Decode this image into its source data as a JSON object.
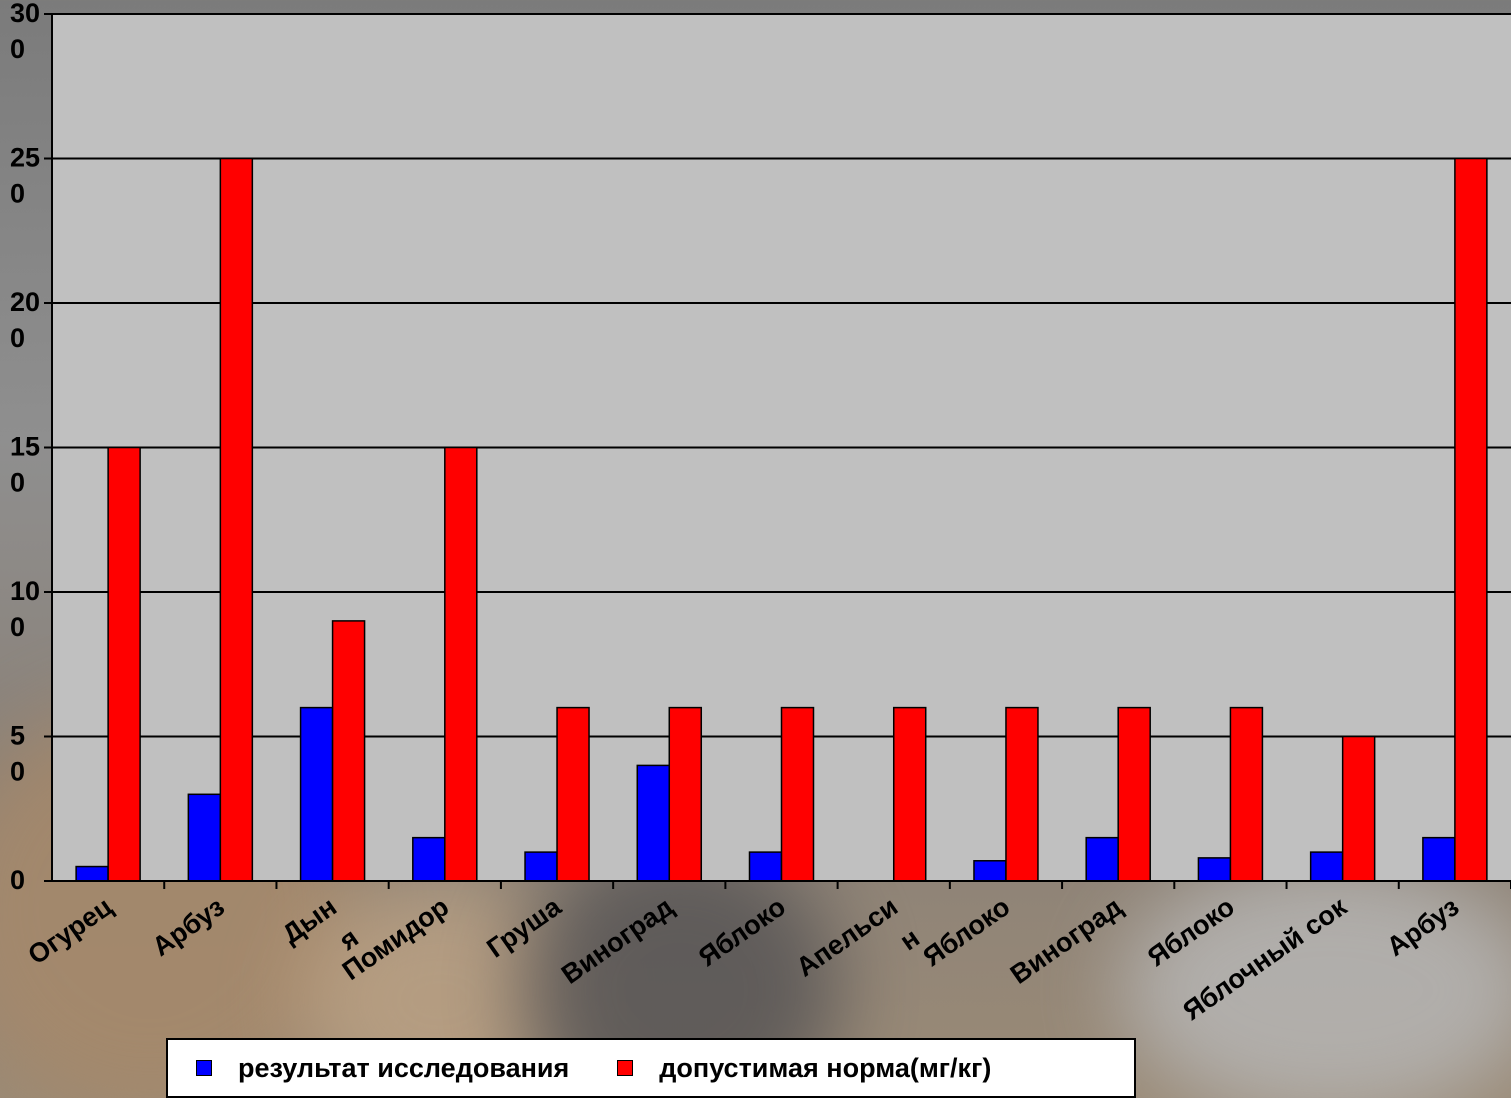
{
  "colors": {
    "plot_background": "#c0c0c0",
    "series_result": "#0000ff",
    "series_norm": "#ff0000",
    "gridline": "#000000"
  },
  "chart_data": {
    "type": "bar",
    "categories": [
      "Огурец",
      "Арбуз",
      "Дын\nя",
      "Помидор",
      "Груша",
      "Виноград",
      "Яблоко",
      "Апельси\nн",
      "Яблоко",
      "Виноград",
      "Яблоко",
      "Яблочный сок",
      "Арбуз"
    ],
    "series": [
      {
        "name": "результат исследования",
        "color": "#0000ff",
        "values": [
          5,
          30,
          60,
          15,
          10,
          40,
          10,
          0,
          7,
          15,
          8,
          10,
          15
        ]
      },
      {
        "name": "допустимая норма(мг/кг)",
        "color": "#ff0000",
        "values": [
          150,
          250,
          90,
          150,
          60,
          60,
          60,
          60,
          60,
          60,
          60,
          50,
          250
        ]
      }
    ],
    "ylim": [
      0,
      300
    ],
    "yticks": [
      {
        "value": 0,
        "label": "0"
      },
      {
        "value": 50,
        "label": "5\n0"
      },
      {
        "value": 100,
        "label": "10\n0"
      },
      {
        "value": 150,
        "label": "15\n0"
      },
      {
        "value": 200,
        "label": "20\n0"
      },
      {
        "value": 250,
        "label": "25\n0"
      },
      {
        "value": 300,
        "label": "30\n0"
      }
    ],
    "grid": true,
    "legend_position": "bottom"
  },
  "legend": {
    "items": [
      {
        "label": "результат исследования",
        "color": "#0000ff"
      },
      {
        "label": "допустимая норма(мг/кг)",
        "color": "#ff0000"
      }
    ]
  }
}
